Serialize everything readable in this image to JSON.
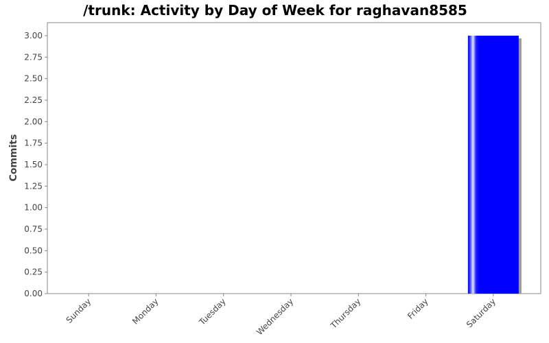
{
  "chart_data": {
    "type": "bar",
    "title": "/trunk: Activity by Day of Week for raghavan8585",
    "xlabel": "",
    "ylabel": "Commits",
    "categories": [
      "Sunday",
      "Monday",
      "Tuesday",
      "Wednesday",
      "Thursday",
      "Friday",
      "Saturday"
    ],
    "values": [
      0,
      0,
      0,
      0,
      0,
      0,
      3
    ],
    "ylim": [
      0,
      3.0
    ],
    "yticks": [
      "0.00",
      "0.25",
      "0.50",
      "0.75",
      "1.00",
      "1.25",
      "1.50",
      "1.75",
      "2.00",
      "2.25",
      "2.50",
      "2.75",
      "3.00"
    ],
    "grid": false,
    "bar_color": "#0000ff",
    "plot_background": "#ffffff"
  }
}
